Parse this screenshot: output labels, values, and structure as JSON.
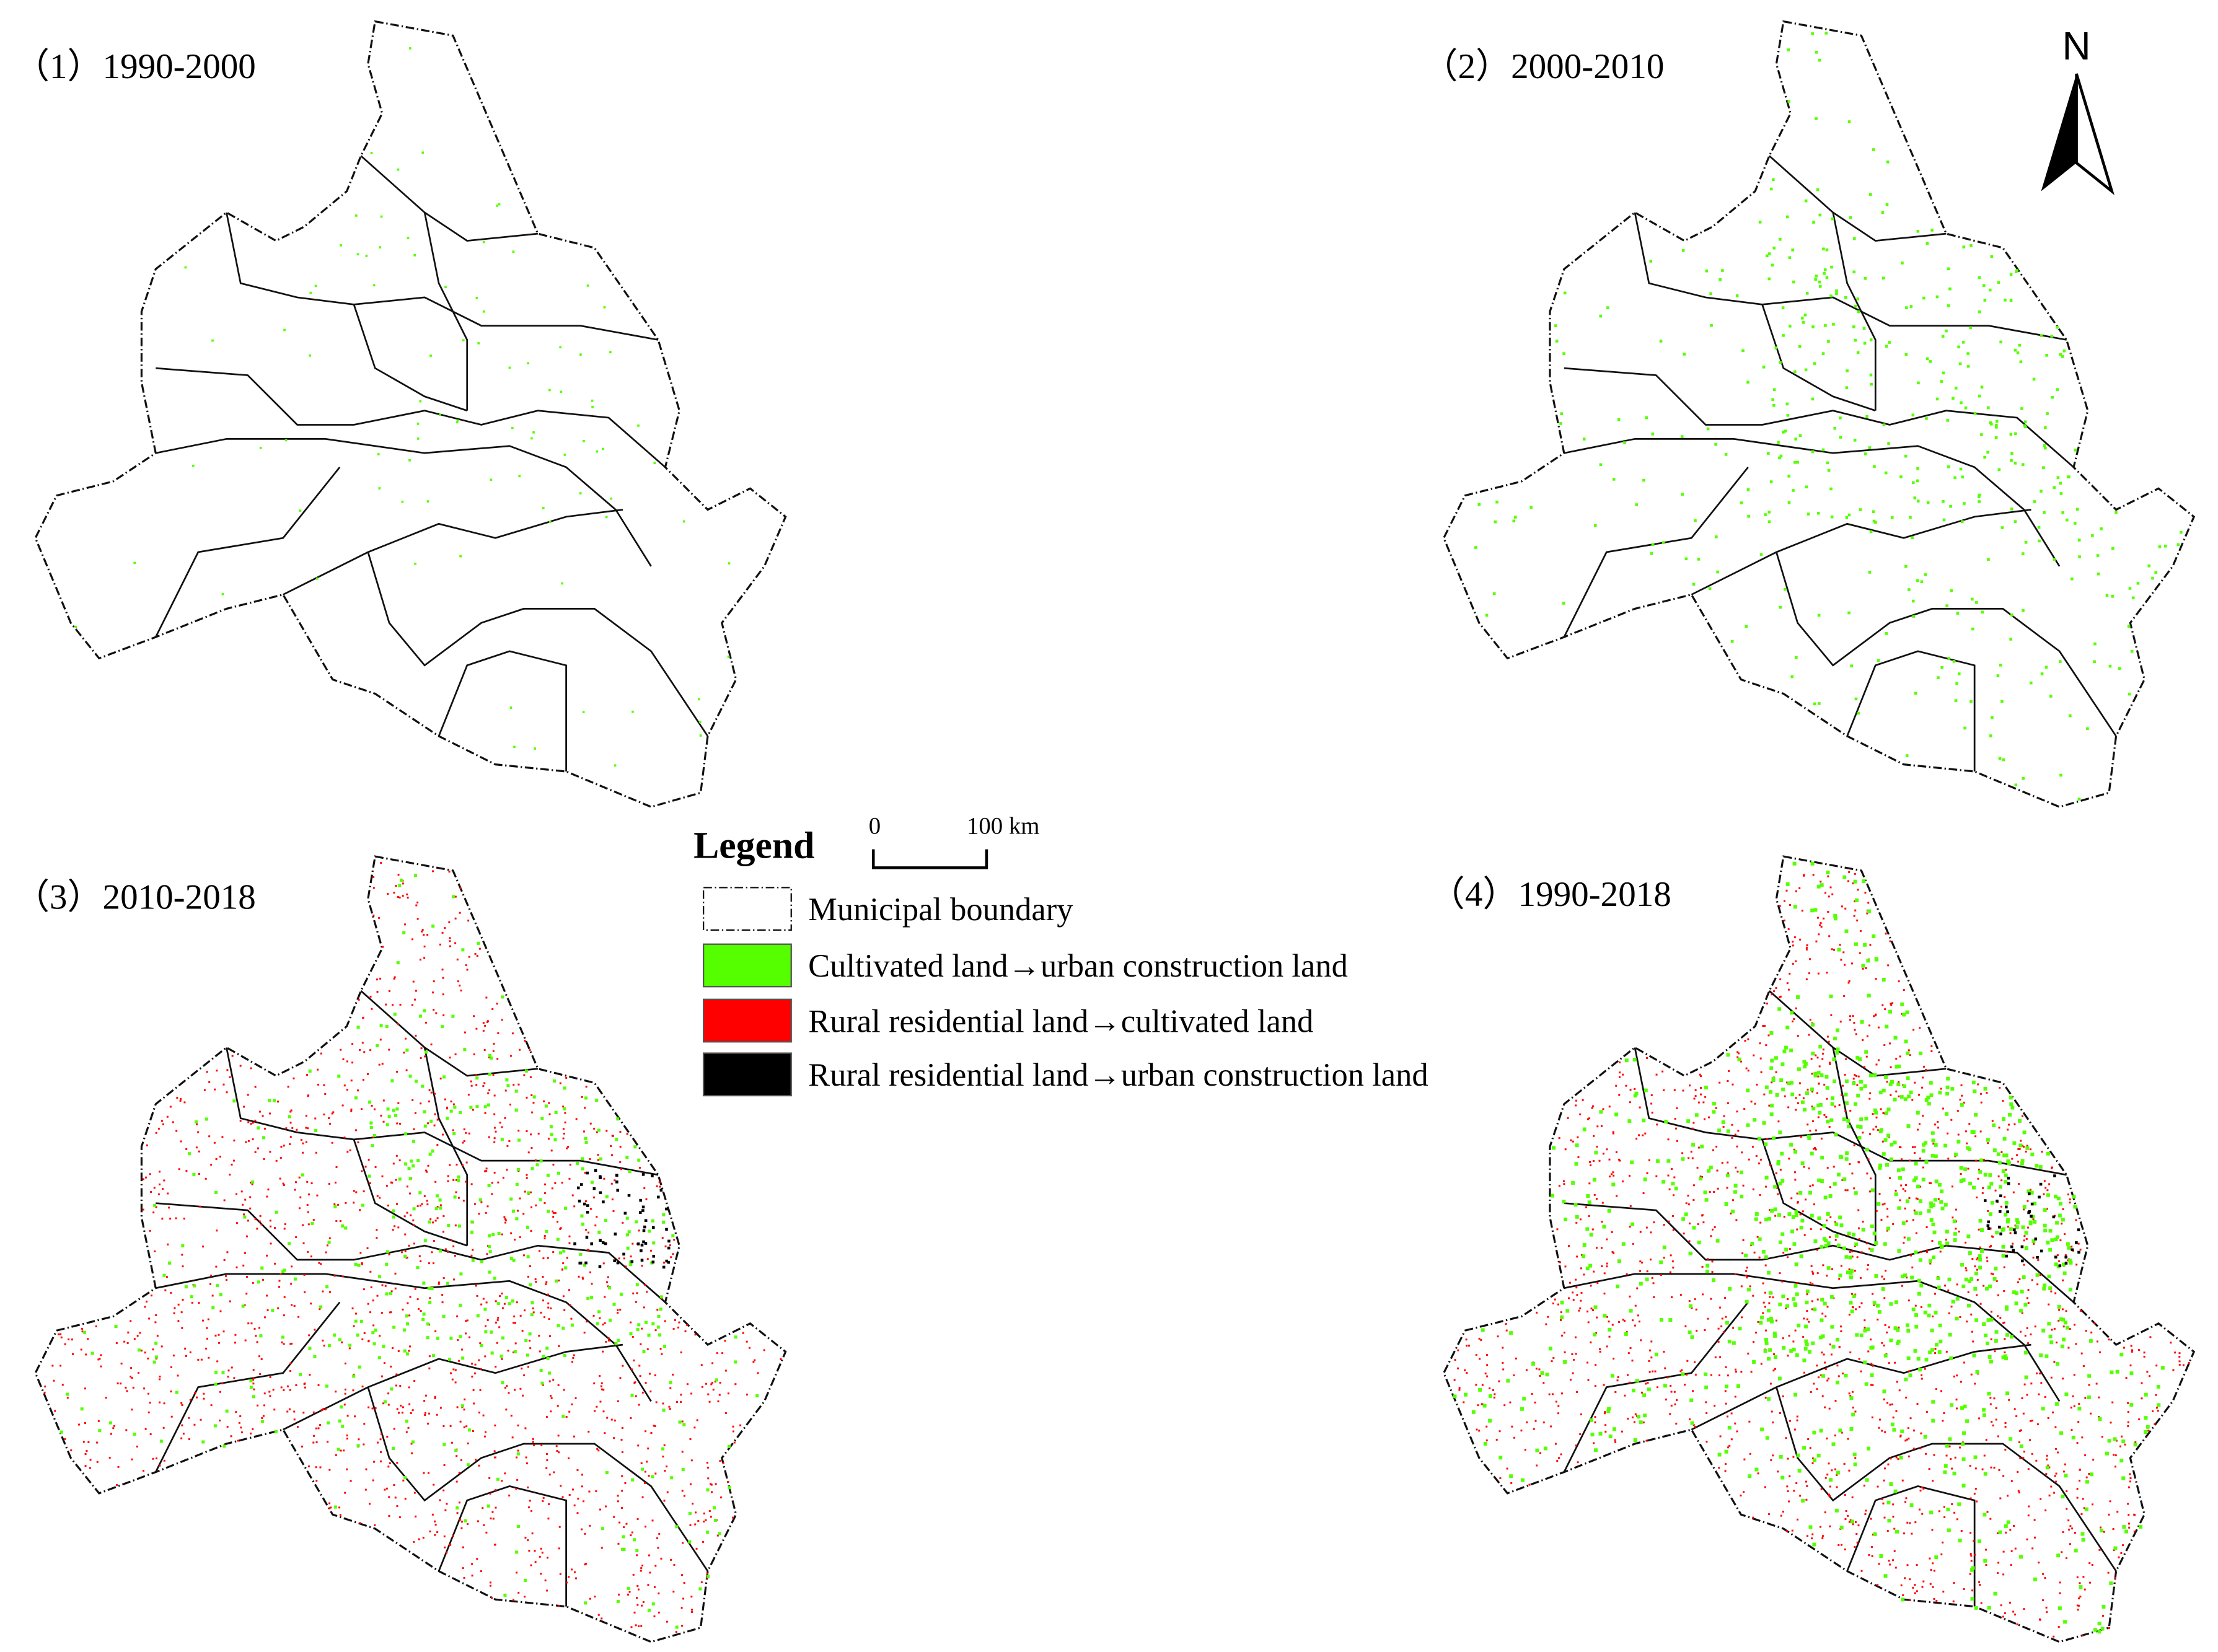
{
  "panels": [
    {
      "label": "（1）1990-2000"
    },
    {
      "label": "（2）2000-2010"
    },
    {
      "label": "（3）2010-2018"
    },
    {
      "label": "（4）1990-2018"
    }
  ],
  "north": "N",
  "legend": {
    "title": "Legend",
    "scale": {
      "start": "0",
      "end": "100 km"
    },
    "items": [
      {
        "label": "Municipal boundary",
        "color": "#ffffff"
      },
      {
        "label": "Cultivated land→urban construction land",
        "color": "#55ff00"
      },
      {
        "label": "Rural residential land→cultivated land",
        "color": "#ff0000"
      },
      {
        "label": "Rural residential land→urban construction land",
        "color": "#000000"
      }
    ]
  }
}
